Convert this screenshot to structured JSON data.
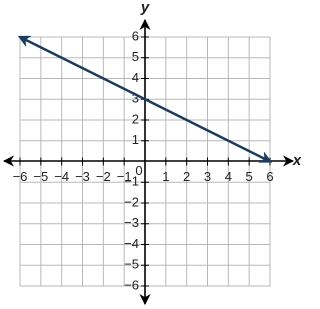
{
  "chart_data": {
    "type": "line",
    "x_label": "x",
    "y_label": "y",
    "x": [
      -6,
      6
    ],
    "series": [
      {
        "color": "#1d3b5c",
        "values": [
          6,
          0
        ]
      }
    ],
    "xlim": [
      -6,
      6
    ],
    "ylim": [
      -6,
      6
    ],
    "xticks": [
      {
        "value": -6,
        "label": "−6"
      },
      {
        "value": -5,
        "label": "−5"
      },
      {
        "value": -4,
        "label": "−4"
      },
      {
        "value": -3,
        "label": "−3"
      },
      {
        "value": -2,
        "label": "−2"
      },
      {
        "value": -1,
        "label": "−1"
      },
      0,
      1,
      2,
      3,
      4,
      5,
      6
    ],
    "yticks": [
      {
        "value": -6,
        "label": "−6"
      },
      {
        "value": -5,
        "label": "−5"
      },
      {
        "value": -4,
        "label": "−4"
      },
      {
        "value": -3,
        "label": "−3"
      },
      {
        "value": -2,
        "label": "−2"
      },
      {
        "value": -1,
        "label": "−1"
      },
      1,
      2,
      3,
      4,
      5,
      6
    ],
    "grid": true
  }
}
